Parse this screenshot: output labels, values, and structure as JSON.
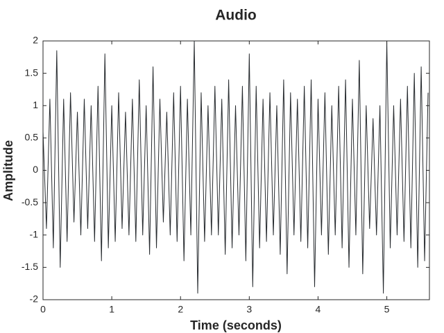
{
  "chart_data": {
    "type": "line",
    "title": "Audio",
    "x_label": "Time (seconds)",
    "y_label": "Amplitude",
    "color": "#262a2e",
    "x": [
      0,
      0.05,
      0.1,
      0.15,
      0.2,
      0.25,
      0.3,
      0.35,
      0.4,
      0.45,
      0.5,
      0.55,
      0.6,
      0.65,
      0.7,
      0.75,
      0.8,
      0.85,
      0.9,
      0.95,
      1.0,
      1.05,
      1.1,
      1.15,
      1.2,
      1.25,
      1.3,
      1.35,
      1.4,
      1.45,
      1.5,
      1.55,
      1.6,
      1.65,
      1.7,
      1.75,
      1.8,
      1.85,
      1.9,
      1.95,
      2.0,
      2.05,
      2.1,
      2.15,
      2.2,
      2.25,
      2.3,
      2.35,
      2.4,
      2.45,
      2.5,
      2.55,
      2.6,
      2.65,
      2.7,
      2.75,
      2.8,
      2.85,
      2.9,
      2.95,
      3.0,
      3.05,
      3.1,
      3.15,
      3.2,
      3.25,
      3.3,
      3.35,
      3.4,
      3.45,
      3.5,
      3.55,
      3.6,
      3.65,
      3.7,
      3.75,
      3.8,
      3.85,
      3.9,
      3.95,
      4.0,
      4.05,
      4.1,
      4.15,
      4.2,
      4.25,
      4.3,
      4.35,
      4.4,
      4.45,
      4.5,
      4.55,
      4.6,
      4.65,
      4.7,
      4.75,
      4.8,
      4.85,
      4.9,
      4.95,
      5.0,
      5.05,
      5.1,
      5.15,
      5.2,
      5.25,
      5.3,
      5.35,
      5.4,
      5.45,
      5.5,
      5.55,
      5.6
    ],
    "values": [
      0.6,
      -0.9,
      1.1,
      -1.2,
      1.85,
      -1.5,
      1.1,
      -1.1,
      1.2,
      -0.8,
      0.9,
      -1.0,
      1.1,
      -0.9,
      1.0,
      -1.1,
      1.3,
      -1.4,
      1.8,
      -1.2,
      1.0,
      -1.1,
      1.2,
      -0.9,
      0.9,
      -1.0,
      1.1,
      -1.1,
      1.4,
      -1.0,
      1.0,
      -1.3,
      1.6,
      -1.2,
      1.1,
      -0.8,
      0.9,
      -1.0,
      1.2,
      -1.1,
      1.3,
      -1.4,
      1.1,
      -1.0,
      2.0,
      -1.9,
      1.2,
      -1.1,
      1.0,
      -1.0,
      1.3,
      -1.0,
      1.1,
      -1.3,
      1.4,
      -1.2,
      1.0,
      -1.0,
      1.3,
      -1.4,
      1.8,
      -1.8,
      1.3,
      -1.2,
      1.1,
      -1.1,
      1.2,
      -1.0,
      1.0,
      -1.3,
      1.4,
      -1.6,
      1.2,
      -1.0,
      1.1,
      -1.1,
      1.3,
      -1.2,
      1.4,
      -1.8,
      1.1,
      -1.0,
      1.2,
      -1.3,
      1.0,
      -1.0,
      1.3,
      -1.2,
      1.4,
      -1.5,
      1.1,
      -1.0,
      1.7,
      -1.6,
      1.0,
      -0.9,
      0.8,
      -1.0,
      1.0,
      -1.9,
      2.0,
      -1.2,
      1.0,
      -1.0,
      1.1,
      -1.1,
      1.3,
      -1.2,
      1.5,
      -1.5,
      1.6,
      -1.4,
      1.2
    ],
    "xlim": [
      0,
      5.62
    ],
    "ylim": [
      -2,
      2
    ],
    "xticks": [
      0,
      1,
      2,
      3,
      4,
      5
    ],
    "yticks": [
      -2,
      -1.5,
      -1,
      -0.5,
      0,
      0.5,
      1,
      1.5,
      2
    ]
  }
}
